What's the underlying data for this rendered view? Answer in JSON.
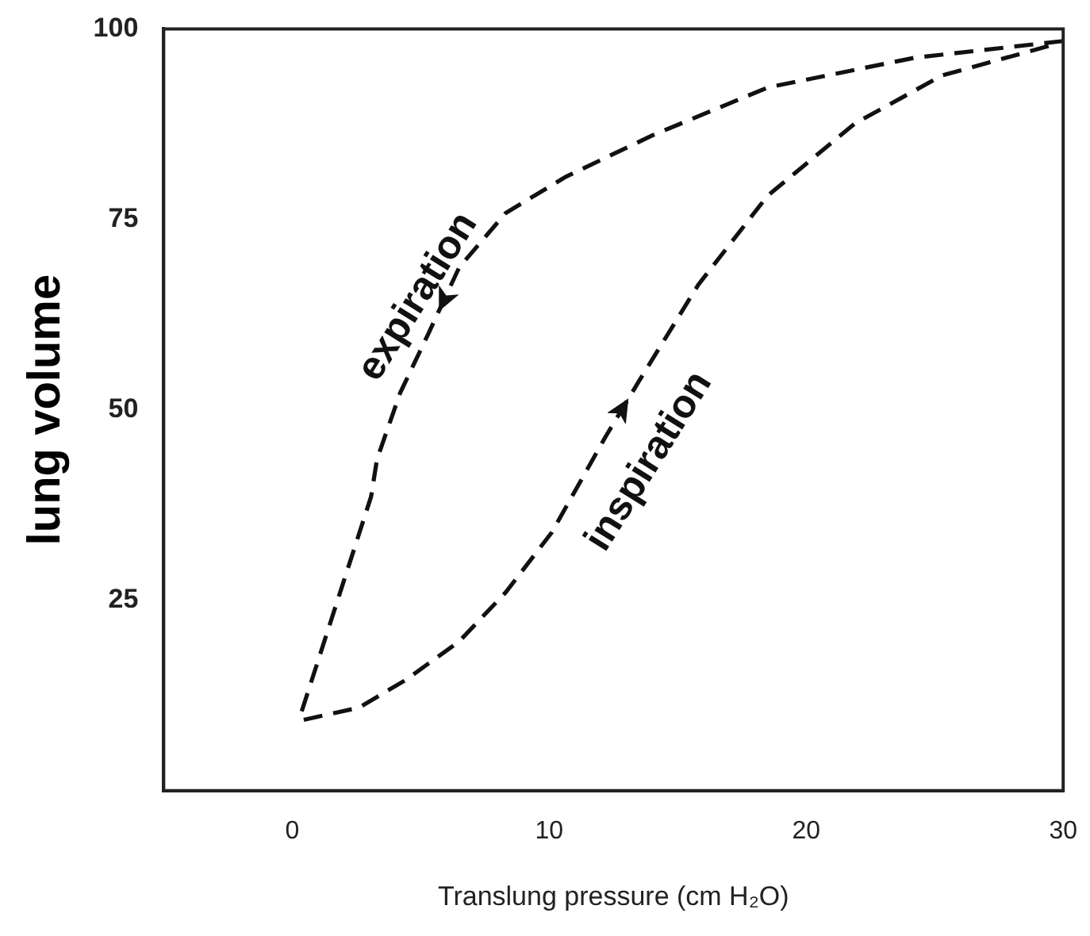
{
  "chart_data": {
    "type": "line",
    "xlabel": "Translung pressure (cm H₂O)",
    "ylabel": "lung volume",
    "xlim": [
      -5,
      30
    ],
    "xticks": [
      0,
      10,
      20,
      30
    ],
    "ylim": [
      0,
      100
    ],
    "yticks": [
      25,
      50,
      75,
      100
    ],
    "grid": false,
    "legend": false,
    "marker": "none",
    "line_style": "dashed",
    "series": [
      {
        "color": "#111111",
        "x": [
          30,
          24.2,
          18.5,
          14,
          10.6,
          8.3,
          6.5,
          5.3,
          4.2,
          3.3,
          3.07,
          1.93,
          1.02,
          0.34
        ],
        "values": [
          98.4,
          96.2,
          92.3,
          86,
          80.5,
          75.8,
          68.7,
          60,
          52.2,
          43.5,
          38.6,
          26.7,
          17.2,
          10.1
        ]
      },
      {
        "color": "#111111",
        "x": [
          0.45,
          2.6,
          4.4,
          6.5,
          8.3,
          10.1,
          12.2,
          13.5,
          15.8,
          18.5,
          21.9,
          25.3,
          29.6
        ],
        "values": [
          9.3,
          10.9,
          14.5,
          19.6,
          26,
          33.9,
          46.5,
          53.8,
          66.4,
          78.1,
          87.6,
          93.9,
          97.9
        ]
      }
    ],
    "annotations": [
      "expiration",
      "inspiration"
    ]
  }
}
